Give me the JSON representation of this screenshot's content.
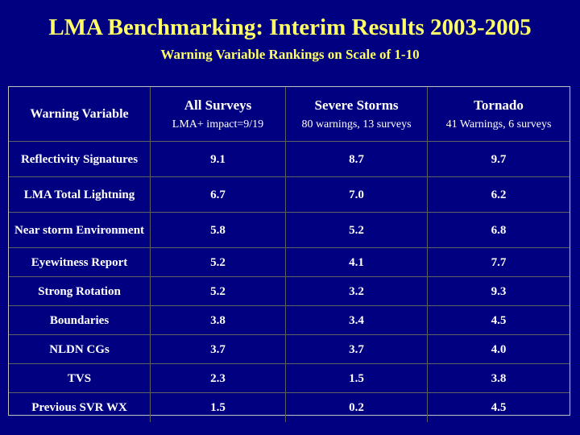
{
  "title": "LMA Benchmarking: Interim Results 2003-2005",
  "subtitle": "Warning Variable Rankings on Scale of 1-10",
  "table": {
    "header_variable": "Warning Variable",
    "columns": [
      {
        "name": "All Surveys",
        "detail": "LMA+ impact=9/19"
      },
      {
        "name": "Severe Storms",
        "detail": "80 warnings, 13 surveys"
      },
      {
        "name": "Tornado",
        "detail": "41 Warnings, 6 surveys"
      }
    ],
    "rows": [
      {
        "label": "Reflectivity Signatures",
        "values": [
          "9.1",
          "8.7",
          "9.7"
        ]
      },
      {
        "label": "LMA Total Lightning",
        "values": [
          "6.7",
          "7.0",
          "6.2"
        ]
      },
      {
        "label": "Near storm Environment",
        "values": [
          "5.8",
          "5.2",
          "6.8"
        ]
      },
      {
        "label": "Eyewitness Report",
        "values": [
          "5.2",
          "4.1",
          "7.7"
        ]
      },
      {
        "label": "Strong Rotation",
        "values": [
          "5.2",
          "3.2",
          "9.3"
        ]
      },
      {
        "label": "Boundaries",
        "values": [
          "3.8",
          "3.4",
          "4.5"
        ]
      },
      {
        "label": "NLDN CGs",
        "values": [
          "3.7",
          "3.7",
          "4.0"
        ]
      },
      {
        "label": "TVS",
        "values": [
          "2.3",
          "1.5",
          "3.8"
        ]
      },
      {
        "label": "Previous SVR WX",
        "values": [
          "1.5",
          "0.2",
          "4.5"
        ]
      }
    ]
  },
  "colors": {
    "background": "#000080",
    "title_text": "#ffff66",
    "table_text": "#ffffff"
  }
}
